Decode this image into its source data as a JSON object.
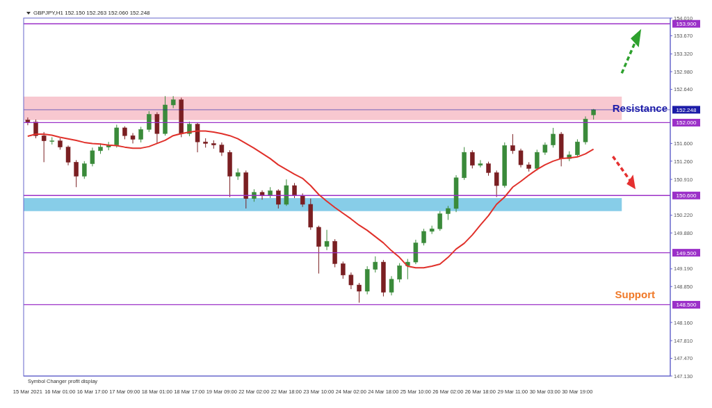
{
  "chart_data": {
    "type": "candlestick",
    "categories": [
      "15 Mar 2021",
      null,
      null,
      null,
      "16 Mar 01:00",
      null,
      null,
      null,
      "16 Mar 17:00",
      null,
      null,
      null,
      "17 Mar 09:00",
      null,
      null,
      null,
      "18 Mar 01:00",
      null,
      null,
      null,
      "18 Mar 17:00",
      null,
      null,
      null,
      "19 Mar 09:00",
      null,
      null,
      null,
      "22 Mar 02:00",
      null,
      null,
      null,
      "22 Mar 18:00",
      null,
      null,
      null,
      "23 Mar 10:00",
      null,
      null,
      null,
      "24 Mar 02:00",
      null,
      null,
      null,
      "24 Mar 18:00",
      null,
      null,
      null,
      "25 Mar 10:00",
      null,
      null,
      null,
      "26 Mar 02:00",
      null,
      null,
      null,
      "26 Mar 18:00",
      null,
      null,
      null,
      "29 Mar 11:00",
      null,
      null,
      null,
      "30 Mar 03:00",
      null,
      null,
      null,
      "30 Mar 19:00",
      null,
      null,
      null,
      null,
      null,
      null,
      null,
      null,
      null,
      null,
      null
    ],
    "ohlc": [
      [
        152.05,
        152.1,
        151.95,
        152.01
      ],
      [
        152.01,
        152.06,
        151.7,
        151.75
      ],
      [
        151.75,
        151.82,
        151.24,
        151.65
      ],
      [
        151.65,
        151.72,
        151.58,
        151.65
      ],
      [
        151.65,
        151.7,
        151.48,
        151.53
      ],
      [
        151.53,
        151.56,
        151.18,
        151.24
      ],
      [
        151.24,
        151.28,
        150.76,
        150.97
      ],
      [
        150.97,
        151.26,
        150.92,
        151.21
      ],
      [
        151.21,
        151.52,
        151.16,
        151.46
      ],
      [
        151.46,
        151.6,
        151.4,
        151.53
      ],
      [
        151.53,
        151.63,
        151.47,
        151.57
      ],
      [
        151.57,
        151.96,
        151.52,
        151.9
      ],
      [
        151.9,
        151.93,
        151.68,
        151.75
      ],
      [
        151.75,
        151.8,
        151.6,
        151.68
      ],
      [
        151.68,
        151.92,
        151.62,
        151.87
      ],
      [
        151.87,
        152.22,
        151.82,
        152.16
      ],
      [
        152.16,
        152.2,
        151.6,
        151.79
      ],
      [
        151.79,
        152.51,
        151.75,
        152.34
      ],
      [
        152.34,
        152.51,
        152.28,
        152.44
      ],
      [
        152.44,
        152.48,
        151.72,
        151.79
      ],
      [
        151.79,
        152.02,
        151.74,
        151.97
      ],
      [
        151.97,
        152.0,
        151.43,
        151.63
      ],
      [
        151.63,
        151.7,
        151.52,
        151.6
      ],
      [
        151.6,
        151.66,
        151.5,
        151.57
      ],
      [
        151.57,
        151.62,
        151.36,
        151.43
      ],
      [
        151.43,
        151.47,
        150.57,
        150.97
      ],
      [
        150.97,
        151.12,
        150.9,
        151.04
      ],
      [
        151.04,
        151.08,
        150.35,
        150.54
      ],
      [
        150.54,
        150.72,
        150.48,
        150.66
      ],
      [
        150.66,
        150.7,
        150.52,
        150.6
      ],
      [
        150.6,
        150.76,
        150.55,
        150.69
      ],
      [
        150.69,
        150.72,
        150.35,
        150.43
      ],
      [
        150.43,
        150.91,
        150.4,
        150.79
      ],
      [
        150.79,
        150.84,
        150.55,
        150.6
      ],
      [
        150.6,
        150.64,
        150.38,
        150.43
      ],
      [
        150.43,
        150.54,
        149.94,
        149.99
      ],
      [
        149.99,
        150.02,
        149.1,
        149.62
      ],
      [
        149.62,
        149.94,
        149.55,
        149.72
      ],
      [
        149.72,
        149.76,
        149.22,
        149.29
      ],
      [
        149.29,
        149.33,
        149.0,
        149.07
      ],
      [
        149.07,
        149.12,
        148.8,
        148.88
      ],
      [
        148.88,
        148.92,
        148.54,
        148.76
      ],
      [
        148.76,
        149.24,
        148.7,
        149.18
      ],
      [
        149.18,
        149.43,
        149.12,
        149.32
      ],
      [
        149.32,
        149.36,
        148.66,
        148.74
      ],
      [
        148.74,
        149.05,
        148.68,
        148.99
      ],
      [
        148.99,
        149.3,
        148.93,
        149.25
      ],
      [
        149.25,
        149.38,
        148.99,
        149.32
      ],
      [
        149.32,
        149.75,
        149.28,
        149.69
      ],
      [
        149.69,
        149.96,
        149.64,
        149.91
      ],
      [
        149.91,
        150.02,
        149.86,
        149.96
      ],
      [
        149.96,
        150.3,
        149.92,
        150.25
      ],
      [
        150.25,
        150.4,
        150.13,
        150.35
      ],
      [
        150.35,
        150.99,
        150.28,
        150.94
      ],
      [
        150.94,
        151.53,
        150.9,
        151.43
      ],
      [
        151.43,
        151.47,
        151.12,
        151.18
      ],
      [
        151.18,
        151.28,
        151.14,
        151.21
      ],
      [
        151.21,
        151.25,
        150.98,
        151.04
      ],
      [
        151.04,
        151.08,
        150.57,
        150.79
      ],
      [
        150.79,
        151.62,
        150.75,
        151.56
      ],
      [
        151.56,
        151.78,
        151.4,
        151.46
      ],
      [
        151.46,
        151.5,
        151.14,
        151.19
      ],
      [
        151.19,
        151.24,
        151.06,
        151.12
      ],
      [
        151.12,
        151.48,
        151.08,
        151.43
      ],
      [
        151.43,
        151.62,
        151.38,
        151.57
      ],
      [
        151.57,
        151.9,
        151.52,
        151.78
      ],
      [
        151.78,
        151.82,
        151.16,
        151.31
      ],
      [
        151.31,
        151.45,
        151.26,
        151.38
      ],
      [
        151.38,
        151.68,
        151.34,
        151.63
      ],
      [
        151.63,
        152.12,
        151.58,
        152.07
      ],
      [
        152.15,
        152.263,
        152.06,
        152.248
      ],
      null,
      null,
      null,
      null,
      null,
      null,
      null,
      null,
      null
    ],
    "colors": [
      "#7a1f22",
      "#7a1f22",
      "#7a1f22",
      "#3a8a3a",
      "#7a1f22",
      "#7a1f22",
      "#7a1f22",
      "#3a8a3a",
      "#3a8a3a",
      "#3a8a3a",
      "#3a8a3a",
      "#3a8a3a",
      "#7a1f22",
      "#7a1f22",
      "#3a8a3a",
      "#3a8a3a",
      "#7a1f22",
      "#3a8a3a",
      "#3a8a3a",
      "#7a1f22",
      "#3a8a3a",
      "#7a1f22",
      "#7a1f22",
      "#7a1f22",
      "#7a1f22",
      "#7a1f22",
      "#3a8a3a",
      "#7a1f22",
      "#3a8a3a",
      "#7a1f22",
      "#3a8a3a",
      "#7a1f22",
      "#3a8a3a",
      "#7a1f22",
      "#7a1f22",
      "#7a1f22",
      "#7a1f22",
      "#3a8a3a",
      "#7a1f22",
      "#7a1f22",
      "#7a1f22",
      "#7a1f22",
      "#3a8a3a",
      "#3a8a3a",
      "#7a1f22",
      "#3a8a3a",
      "#3a8a3a",
      "#3a8a3a",
      "#3a8a3a",
      "#3a8a3a",
      "#3a8a3a",
      "#3a8a3a",
      "#3a8a3a",
      "#3a8a3a",
      "#3a8a3a",
      "#7a1f22",
      "#3a8a3a",
      "#7a1f22",
      "#7a1f22",
      "#3a8a3a",
      "#7a1f22",
      "#7a1f22",
      "#7a1f22",
      "#3a8a3a",
      "#3a8a3a",
      "#3a8a3a",
      "#7a1f22",
      "#3a8a3a",
      "#3a8a3a",
      "#3a8a3a",
      "#3a8a3a",
      null,
      null,
      null,
      null,
      null,
      null,
      null,
      null,
      null
    ],
    "series": [
      {
        "type": "line",
        "color": "#e0302a",
        "values": [
          151.74,
          151.78,
          151.78,
          151.76,
          151.72,
          151.69,
          151.66,
          151.62,
          151.6,
          151.59,
          151.57,
          151.56,
          151.53,
          151.51,
          151.51,
          151.54,
          151.6,
          151.66,
          151.75,
          151.79,
          151.82,
          151.84,
          151.84,
          151.82,
          151.79,
          151.75,
          151.69,
          151.6,
          151.51,
          151.41,
          151.31,
          151.19,
          151.1,
          151.01,
          150.93,
          150.79,
          150.62,
          150.49,
          150.37,
          150.26,
          150.15,
          150.03,
          149.93,
          149.81,
          149.69,
          149.54,
          149.41,
          149.24,
          149.21,
          149.21,
          149.24,
          149.28,
          149.41,
          149.57,
          149.68,
          149.84,
          150.03,
          150.21,
          150.43,
          150.57,
          150.76,
          150.87,
          150.99,
          151.1,
          151.19,
          151.26,
          151.31,
          151.32,
          151.34,
          151.4,
          151.49,
          null,
          null,
          null,
          null,
          null,
          null,
          null,
          null,
          null
        ]
      }
    ],
    "ylim": [
      147.13,
      154.01
    ],
    "yticks": [
      {
        "value": 154.01,
        "label": "154.010"
      },
      {
        "value": 153.67,
        "label": "153.670"
      },
      {
        "value": 153.32,
        "label": "153.320"
      },
      {
        "value": 152.98,
        "label": "152.980"
      },
      {
        "value": 152.64,
        "label": "152.640"
      },
      {
        "value": 151.6,
        "label": "151.600"
      },
      {
        "value": 151.26,
        "label": "151.260"
      },
      {
        "value": 150.91,
        "label": "150.910"
      },
      {
        "value": 150.22,
        "label": "150.220"
      },
      {
        "value": 149.88,
        "label": "149.880"
      },
      {
        "value": 149.19,
        "label": "149.190"
      },
      {
        "value": 148.85,
        "label": "148.850"
      },
      {
        "value": 148.16,
        "label": "148.160"
      },
      {
        "value": 147.81,
        "label": "147.810"
      },
      {
        "value": 147.47,
        "label": "147.470"
      },
      {
        "value": 147.13,
        "label": "147.130"
      }
    ],
    "ref_lines": [
      {
        "axis": "y",
        "value": 153.9,
        "label": "153.900",
        "color": "#9b30c8"
      },
      {
        "axis": "y",
        "value": 152.248,
        "label": "152.248",
        "color": "#1c1ca8"
      },
      {
        "axis": "y",
        "value": 152.0,
        "label": "152.000",
        "color": "#9b30c8"
      },
      {
        "axis": "y",
        "value": 150.6,
        "label": "150.600",
        "color": "#9b30c8"
      },
      {
        "axis": "y",
        "value": 149.5,
        "label": "149.500",
        "color": "#9b30c8"
      },
      {
        "axis": "y",
        "value": 148.5,
        "label": "148.500",
        "color": "#9b30c8"
      }
    ],
    "bands": [
      {
        "axis": "y",
        "from": 152.05,
        "to": 152.5,
        "label": "Resistance",
        "color": "#f8c8d0"
      },
      {
        "axis": "y",
        "from": 150.3,
        "to": 150.55,
        "color": "#87cde8"
      }
    ],
    "annotations": [
      "GBPJPY,H1 152.150 152.263 152.060 152.248",
      "Symbol Changer profit display",
      {
        "text": "Support",
        "y": 148.5
      }
    ]
  }
}
